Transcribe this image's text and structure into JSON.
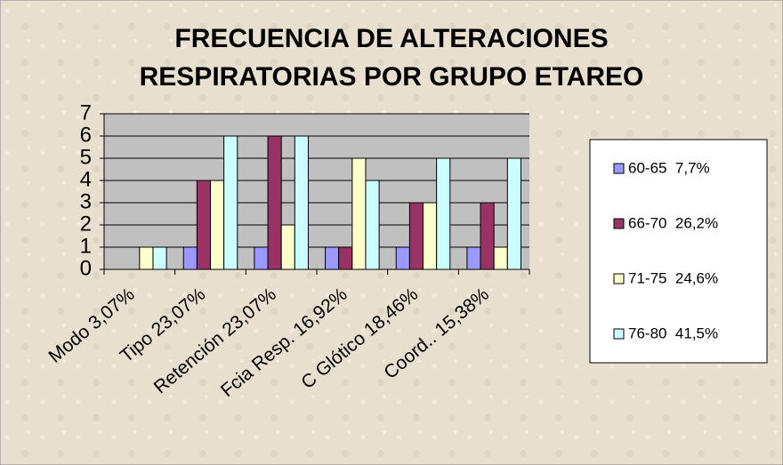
{
  "chart_data": {
    "type": "bar",
    "title": [
      "FRECUENCIA DE ALTERACIONES",
      "RESPIRATORIAS POR GRUPO ETAREO"
    ],
    "categories": [
      "Modo 3,07%",
      "Tipo 23,07%",
      "Retención 23,07%",
      "Fcia Resp. 16,92%",
      "C Glótico 18,46%",
      "Coord.. 15,38%"
    ],
    "series": [
      {
        "name": "60-65  7,7%",
        "color": "#9999ff",
        "values": [
          0,
          1,
          1,
          1,
          1,
          1
        ]
      },
      {
        "name": "66-70  26,2%",
        "color": "#993366",
        "values": [
          0,
          4,
          6,
          1,
          3,
          3
        ]
      },
      {
        "name": "71-75  24,6%",
        "color": "#ffffcc",
        "values": [
          1,
          4,
          2,
          5,
          3,
          1
        ]
      },
      {
        "name": "76-80  41,5%",
        "color": "#ccffff",
        "values": [
          1,
          6,
          6,
          4,
          5,
          5
        ]
      }
    ],
    "ylim": [
      0,
      7
    ],
    "yticks": [
      0,
      1,
      2,
      3,
      4,
      5,
      6,
      7
    ],
    "grid": true,
    "legend": "right"
  }
}
